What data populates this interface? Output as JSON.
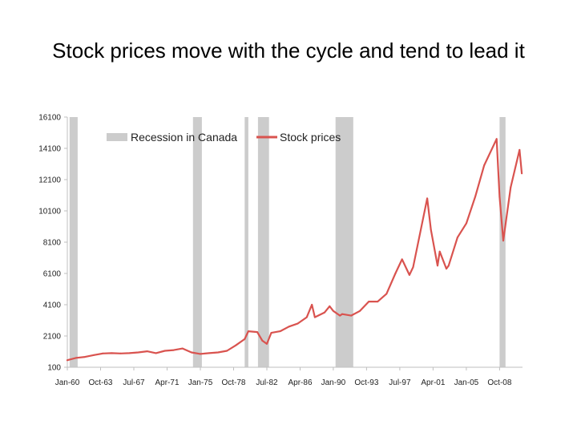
{
  "slide": {
    "title": "Stock prices move with the cycle and tend to lead it"
  },
  "chart_data": {
    "type": "line",
    "title": "Stock prices move with the cycle and tend to lead it",
    "xlabel": "",
    "ylabel": "",
    "ylim": [
      100,
      16100
    ],
    "y_ticks": [
      100,
      2100,
      4100,
      6100,
      8100,
      10100,
      12100,
      14100,
      16100
    ],
    "x_range": [
      "Jan-60",
      "May-11"
    ],
    "x_ticks": [
      "Jan-60",
      "Oct-63",
      "Jul-67",
      "Apr-71",
      "Jan-75",
      "Oct-78",
      "Jul-82",
      "Apr-86",
      "Jan-90",
      "Oct-93",
      "Jul-97",
      "Apr-01",
      "Jan-05",
      "Oct-08"
    ],
    "grid": false,
    "legend": {
      "placement": "top-left",
      "entries": [
        "Recession in Canada",
        "Stock prices"
      ]
    },
    "colors": {
      "line": "#d9534f",
      "recession": "#cccccc",
      "axis": "#bfbfbf"
    },
    "recessions": [
      {
        "start": "Apr-60",
        "end": "Mar-61"
      },
      {
        "start": "Mar-74",
        "end": "Mar-75"
      },
      {
        "start": "Jan-80",
        "end": "Jun-80"
      },
      {
        "start": "Jul-81",
        "end": "Oct-82"
      },
      {
        "start": "Apr-90",
        "end": "Apr-92"
      },
      {
        "start": "Oct-08",
        "end": "Jun-09"
      }
    ],
    "series": [
      {
        "name": "Stock prices",
        "x": [
          "Jan-60",
          "Jan-61",
          "Jan-62",
          "Jan-63",
          "Jan-64",
          "Jan-65",
          "Jan-66",
          "Jan-67",
          "Jan-68",
          "Jan-69",
          "Jan-70",
          "Jan-71",
          "Jan-72",
          "Jan-73",
          "Jan-74",
          "Jan-75",
          "Jan-76",
          "Jan-77",
          "Jan-78",
          "Jan-79",
          "Jan-80",
          "Jun-80",
          "Jun-81",
          "Jan-82",
          "Jul-82",
          "Jan-83",
          "Jan-84",
          "Jan-85",
          "Jan-86",
          "Jan-87",
          "Aug-87",
          "Dec-87",
          "Jan-89",
          "Aug-89",
          "Jan-90",
          "Oct-90",
          "Jan-91",
          "Jan-92",
          "Jan-93",
          "Jan-94",
          "Jan-95",
          "Jan-96",
          "Jan-97",
          "Oct-97",
          "Aug-98",
          "Jan-99",
          "Aug-00",
          "Jan-01",
          "Oct-01",
          "Jan-02",
          "Oct-02",
          "Jan-03",
          "Jan-04",
          "Jan-05",
          "Jan-06",
          "Jan-07",
          "Jun-08",
          "Oct-08",
          "Mar-09",
          "Jan-10",
          "Jan-11",
          "Apr-11"
        ],
        "values": [
          550,
          700,
          760,
          880,
          980,
          1000,
          980,
          1000,
          1050,
          1120,
          1000,
          1150,
          1200,
          1300,
          1050,
          950,
          1000,
          1050,
          1150,
          1500,
          1900,
          2400,
          2350,
          1800,
          1600,
          2300,
          2400,
          2700,
          2900,
          3300,
          4100,
          3300,
          3600,
          4000,
          3700,
          3400,
          3500,
          3400,
          3700,
          4300,
          4300,
          4800,
          6100,
          7000,
          6000,
          6500,
          10900,
          8900,
          6600,
          7500,
          6400,
          6600,
          8400,
          9300,
          11000,
          13000,
          14700,
          11000,
          8200,
          11600,
          14000,
          12500
        ]
      }
    ]
  }
}
